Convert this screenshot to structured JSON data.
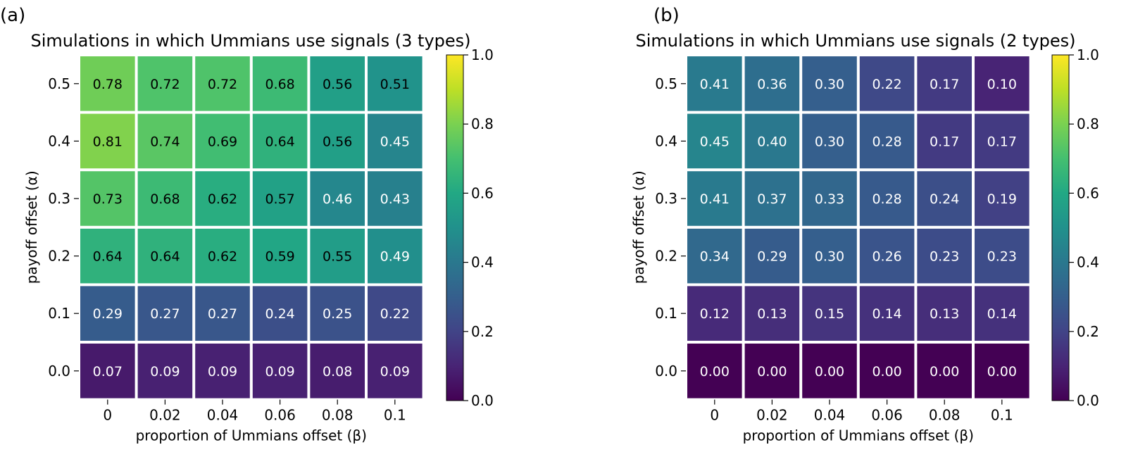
{
  "figure": {
    "colorbar_ticks": [
      "0.0",
      "0.2",
      "0.4",
      "0.6",
      "0.8",
      "1.0"
    ],
    "colormap": "viridis",
    "text_color_dark": "#000000",
    "text_color_light": "#ffffff"
  },
  "chart_data": [
    {
      "type": "heatmap",
      "panel_label": "(a)",
      "title": "Simulations in which Ummians use signals (3 types)",
      "xlabel": "proportion of Ummians offset (β)",
      "ylabel": "payoff offset (α)",
      "x": [
        "0",
        "0.02",
        "0.04",
        "0.06",
        "0.08",
        "0.1"
      ],
      "y": [
        "0.5",
        "0.4",
        "0.3",
        "0.2",
        "0.1",
        "0.0"
      ],
      "z": [
        [
          0.78,
          0.72,
          0.72,
          0.68,
          0.56,
          0.51
        ],
        [
          0.81,
          0.74,
          0.69,
          0.64,
          0.56,
          0.45
        ],
        [
          0.73,
          0.68,
          0.62,
          0.57,
          0.46,
          0.43
        ],
        [
          0.64,
          0.64,
          0.62,
          0.59,
          0.55,
          0.49
        ],
        [
          0.29,
          0.27,
          0.27,
          0.24,
          0.25,
          0.22
        ],
        [
          0.07,
          0.09,
          0.09,
          0.09,
          0.08,
          0.09
        ]
      ],
      "zlim": [
        0.0,
        1.0
      ],
      "grid": false
    },
    {
      "type": "heatmap",
      "panel_label": "(b)",
      "title": "Simulations in which Ummians use signals (2 types)",
      "xlabel": "proportion of Ummians offset (β)",
      "ylabel": "payoff offset (α)",
      "x": [
        "0",
        "0.02",
        "0.04",
        "0.06",
        "0.08",
        "0.1"
      ],
      "y": [
        "0.5",
        "0.4",
        "0.3",
        "0.2",
        "0.1",
        "0.0"
      ],
      "z": [
        [
          0.41,
          0.36,
          0.3,
          0.22,
          0.17,
          0.1
        ],
        [
          0.45,
          0.4,
          0.3,
          0.28,
          0.17,
          0.17
        ],
        [
          0.41,
          0.37,
          0.33,
          0.28,
          0.24,
          0.19
        ],
        [
          0.34,
          0.29,
          0.3,
          0.26,
          0.23,
          0.23
        ],
        [
          0.12,
          0.13,
          0.15,
          0.14,
          0.13,
          0.14
        ],
        [
          0.0,
          0.0,
          0.0,
          0.0,
          0.0,
          0.0
        ]
      ],
      "zlim": [
        0.0,
        1.0
      ],
      "grid": false
    }
  ]
}
